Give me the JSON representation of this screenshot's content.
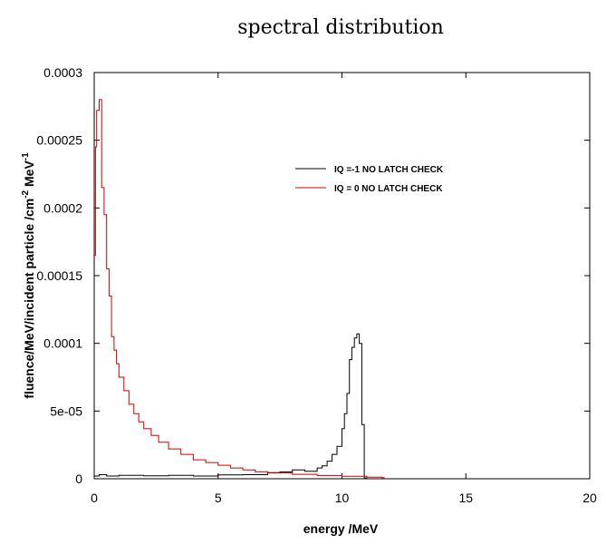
{
  "chart_data": {
    "type": "line",
    "style": "step",
    "title": "spectral distribution",
    "xlabel": "energy /MeV",
    "ylabel": "fluence/MeV/incident particle /cm",
    "ylabel_sup1": "-2",
    "ylabel_mid": " MeV",
    "ylabel_sup2": "-1",
    "xlim": [
      0,
      20
    ],
    "ylim": [
      0,
      0.0003
    ],
    "x_ticks": [
      0,
      5,
      10,
      15,
      20
    ],
    "x_tick_labels": [
      "0",
      "5",
      "10",
      "15",
      "20"
    ],
    "y_ticks": [
      0,
      5e-05,
      0.0001,
      0.00015,
      0.0002,
      0.00025,
      0.0003
    ],
    "y_tick_labels": [
      "0",
      "5e-05",
      "0.0001",
      "0.00015",
      "0.0002",
      "0.00025",
      "0.0003"
    ],
    "grid": false,
    "legend_position": "top-right",
    "series": [
      {
        "name": "IQ =-1 NO LATCH CHECK",
        "color": "#000000",
        "points": [
          [
            0,
            2e-06
          ],
          [
            0.2,
            3e-06
          ],
          [
            0.5,
            2e-06
          ],
          [
            1,
            2.5e-06
          ],
          [
            2,
            2.2e-06
          ],
          [
            3,
            2.5e-06
          ],
          [
            4,
            2e-06
          ],
          [
            5,
            2.8e-06
          ],
          [
            6,
            3e-06
          ],
          [
            7,
            4.5e-06
          ],
          [
            7.5,
            5e-06
          ],
          [
            8,
            6.5e-06
          ],
          [
            8.5,
            5.5e-06
          ],
          [
            9,
            8e-06
          ],
          [
            9.2,
            9.5e-06
          ],
          [
            9.4,
            1.3e-05
          ],
          [
            9.6,
            1.8e-05
          ],
          [
            9.8,
            2.4e-05
          ],
          [
            10,
            3.7e-05
          ],
          [
            10.1,
            4.8e-05
          ],
          [
            10.2,
            6.3e-05
          ],
          [
            10.3,
            8.8e-05
          ],
          [
            10.4,
            9.7e-05
          ],
          [
            10.5,
            0.000104
          ],
          [
            10.6,
            0.000107
          ],
          [
            10.7,
            0.0001
          ],
          [
            10.8,
            4e-05
          ],
          [
            10.9,
            5e-07
          ],
          [
            11,
            0
          ]
        ]
      },
      {
        "name": "IQ = 0 NO LATCH CHECK",
        "color": "#cc0000",
        "points": [
          [
            0,
            0.000165
          ],
          [
            0.05,
            0.000245
          ],
          [
            0.1,
            0.000272
          ],
          [
            0.2,
            0.00028
          ],
          [
            0.3,
            0.000215
          ],
          [
            0.4,
            0.000195
          ],
          [
            0.5,
            0.000155
          ],
          [
            0.6,
            0.000135
          ],
          [
            0.7,
            0.000105
          ],
          [
            0.8,
            9.5e-05
          ],
          [
            0.9,
            8.5e-05
          ],
          [
            1,
            7.5e-05
          ],
          [
            1.2,
            6.5e-05
          ],
          [
            1.4,
            5.5e-05
          ],
          [
            1.6,
            4.8e-05
          ],
          [
            1.8,
            4.2e-05
          ],
          [
            2,
            3.7e-05
          ],
          [
            2.3,
            3.2e-05
          ],
          [
            2.6,
            2.7e-05
          ],
          [
            3,
            2.2e-05
          ],
          [
            3.5,
            1.8e-05
          ],
          [
            4,
            1.4e-05
          ],
          [
            4.5,
            1.2e-05
          ],
          [
            5,
            1e-05
          ],
          [
            5.5,
            8e-06
          ],
          [
            6,
            6.5e-06
          ],
          [
            6.5,
            5.2e-06
          ],
          [
            7,
            4.3e-06
          ],
          [
            8,
            3.3e-06
          ],
          [
            9,
            2.4e-06
          ],
          [
            10,
            1.8e-06
          ],
          [
            11,
            1.2e-06
          ],
          [
            11.6,
            8e-07
          ],
          [
            11.7,
            0
          ]
        ]
      }
    ]
  }
}
